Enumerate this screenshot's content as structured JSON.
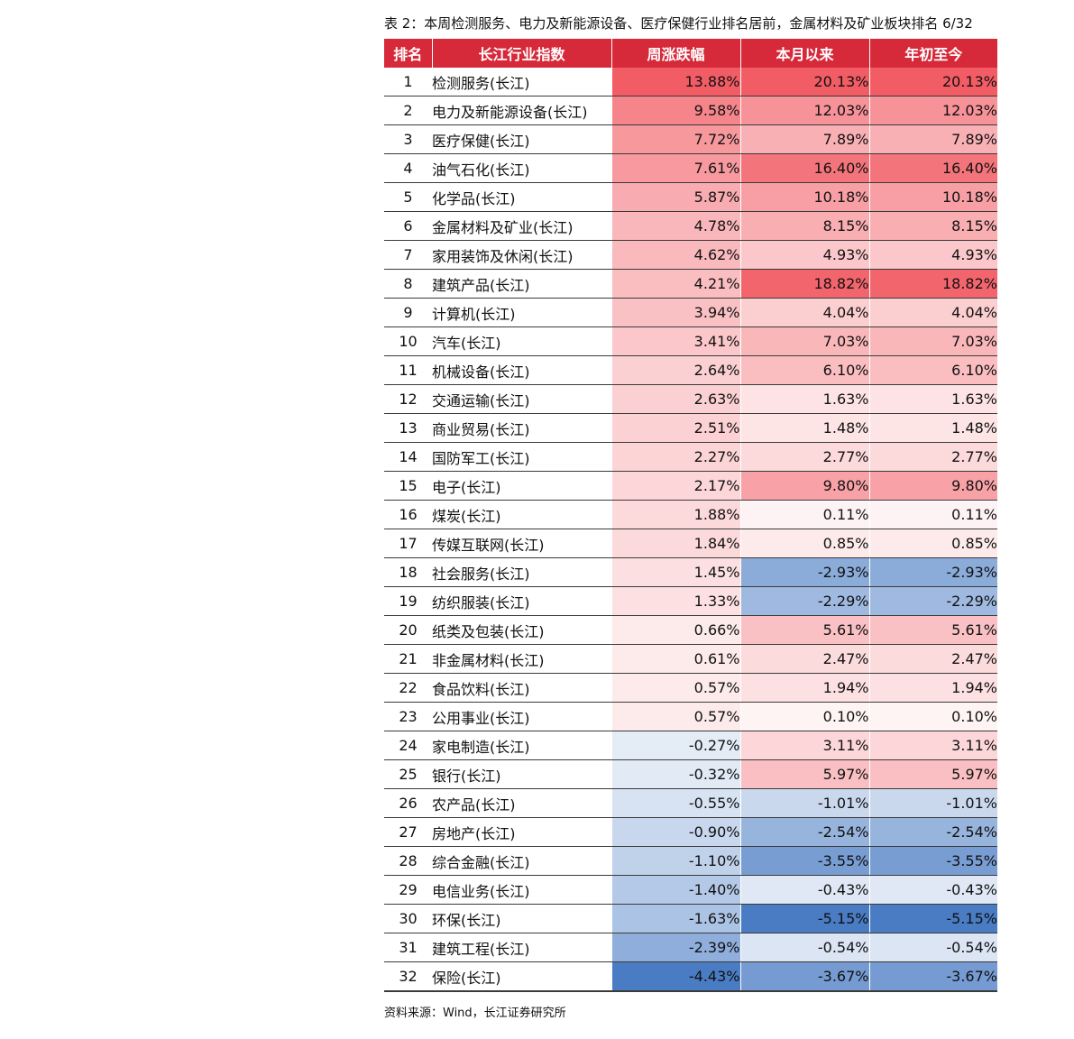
{
  "caption": "表 2：本周检测服务、电力及新能源设备、医疗保健行业排名居前，金属材料及矿业板块排名 6/32",
  "table": {
    "headers": [
      "排名",
      "长江行业指数",
      "周涨跌幅",
      "本月以来",
      "年初至今"
    ],
    "colors": {
      "header_bg": "#d6293a",
      "positive": "#f25c64",
      "negative": "#4a7cc4"
    },
    "rows": [
      {
        "rank": "1",
        "name": "检测服务(长江)",
        "week": "13.88%",
        "month": "20.13%",
        "ytd": "20.13%"
      },
      {
        "rank": "2",
        "name": "电力及新能源设备(长江)",
        "week": "9.58%",
        "month": "12.03%",
        "ytd": "12.03%"
      },
      {
        "rank": "3",
        "name": "医疗保健(长江)",
        "week": "7.72%",
        "month": "7.89%",
        "ytd": "7.89%"
      },
      {
        "rank": "4",
        "name": "油气石化(长江)",
        "week": "7.61%",
        "month": "16.40%",
        "ytd": "16.40%"
      },
      {
        "rank": "5",
        "name": "化学品(长江)",
        "week": "5.87%",
        "month": "10.18%",
        "ytd": "10.18%"
      },
      {
        "rank": "6",
        "name": "金属材料及矿业(长江)",
        "week": "4.78%",
        "month": "8.15%",
        "ytd": "8.15%"
      },
      {
        "rank": "7",
        "name": "家用装饰及休闲(长江)",
        "week": "4.62%",
        "month": "4.93%",
        "ytd": "4.93%"
      },
      {
        "rank": "8",
        "name": "建筑产品(长江)",
        "week": "4.21%",
        "month": "18.82%",
        "ytd": "18.82%"
      },
      {
        "rank": "9",
        "name": "计算机(长江)",
        "week": "3.94%",
        "month": "4.04%",
        "ytd": "4.04%"
      },
      {
        "rank": "10",
        "name": "汽车(长江)",
        "week": "3.41%",
        "month": "7.03%",
        "ytd": "7.03%"
      },
      {
        "rank": "11",
        "name": "机械设备(长江)",
        "week": "2.64%",
        "month": "6.10%",
        "ytd": "6.10%"
      },
      {
        "rank": "12",
        "name": "交通运输(长江)",
        "week": "2.63%",
        "month": "1.63%",
        "ytd": "1.63%"
      },
      {
        "rank": "13",
        "name": "商业贸易(长江)",
        "week": "2.51%",
        "month": "1.48%",
        "ytd": "1.48%"
      },
      {
        "rank": "14",
        "name": "国防军工(长江)",
        "week": "2.27%",
        "month": "2.77%",
        "ytd": "2.77%"
      },
      {
        "rank": "15",
        "name": "电子(长江)",
        "week": "2.17%",
        "month": "9.80%",
        "ytd": "9.80%"
      },
      {
        "rank": "16",
        "name": "煤炭(长江)",
        "week": "1.88%",
        "month": "0.11%",
        "ytd": "0.11%"
      },
      {
        "rank": "17",
        "name": "传媒互联网(长江)",
        "week": "1.84%",
        "month": "0.85%",
        "ytd": "0.85%"
      },
      {
        "rank": "18",
        "name": "社会服务(长江)",
        "week": "1.45%",
        "month": "-2.93%",
        "ytd": "-2.93%"
      },
      {
        "rank": "19",
        "name": "纺织服装(长江)",
        "week": "1.33%",
        "month": "-2.29%",
        "ytd": "-2.29%"
      },
      {
        "rank": "20",
        "name": "纸类及包装(长江)",
        "week": "0.66%",
        "month": "5.61%",
        "ytd": "5.61%"
      },
      {
        "rank": "21",
        "name": "非金属材料(长江)",
        "week": "0.61%",
        "month": "2.47%",
        "ytd": "2.47%"
      },
      {
        "rank": "22",
        "name": "食品饮料(长江)",
        "week": "0.57%",
        "month": "1.94%",
        "ytd": "1.94%"
      },
      {
        "rank": "23",
        "name": "公用事业(长江)",
        "week": "0.57%",
        "month": "0.10%",
        "ytd": "0.10%"
      },
      {
        "rank": "24",
        "name": "家电制造(长江)",
        "week": "-0.27%",
        "month": "3.11%",
        "ytd": "3.11%"
      },
      {
        "rank": "25",
        "name": "银行(长江)",
        "week": "-0.32%",
        "month": "5.97%",
        "ytd": "5.97%"
      },
      {
        "rank": "26",
        "name": "农产品(长江)",
        "week": "-0.55%",
        "month": "-1.01%",
        "ytd": "-1.01%"
      },
      {
        "rank": "27",
        "name": "房地产(长江)",
        "week": "-0.90%",
        "month": "-2.54%",
        "ytd": "-2.54%"
      },
      {
        "rank": "28",
        "name": "综合金融(长江)",
        "week": "-1.10%",
        "month": "-3.55%",
        "ytd": "-3.55%"
      },
      {
        "rank": "29",
        "name": "电信业务(长江)",
        "week": "-1.40%",
        "month": "-0.43%",
        "ytd": "-0.43%"
      },
      {
        "rank": "30",
        "name": "环保(长江)",
        "week": "-1.63%",
        "month": "-5.15%",
        "ytd": "-5.15%"
      },
      {
        "rank": "31",
        "name": "建筑工程(长江)",
        "week": "-2.39%",
        "month": "-0.54%",
        "ytd": "-0.54%"
      },
      {
        "rank": "32",
        "name": "保险(长江)",
        "week": "-4.43%",
        "month": "-3.67%",
        "ytd": "-3.67%"
      }
    ]
  },
  "source": "资料来源：Wind，长江证券研究所"
}
